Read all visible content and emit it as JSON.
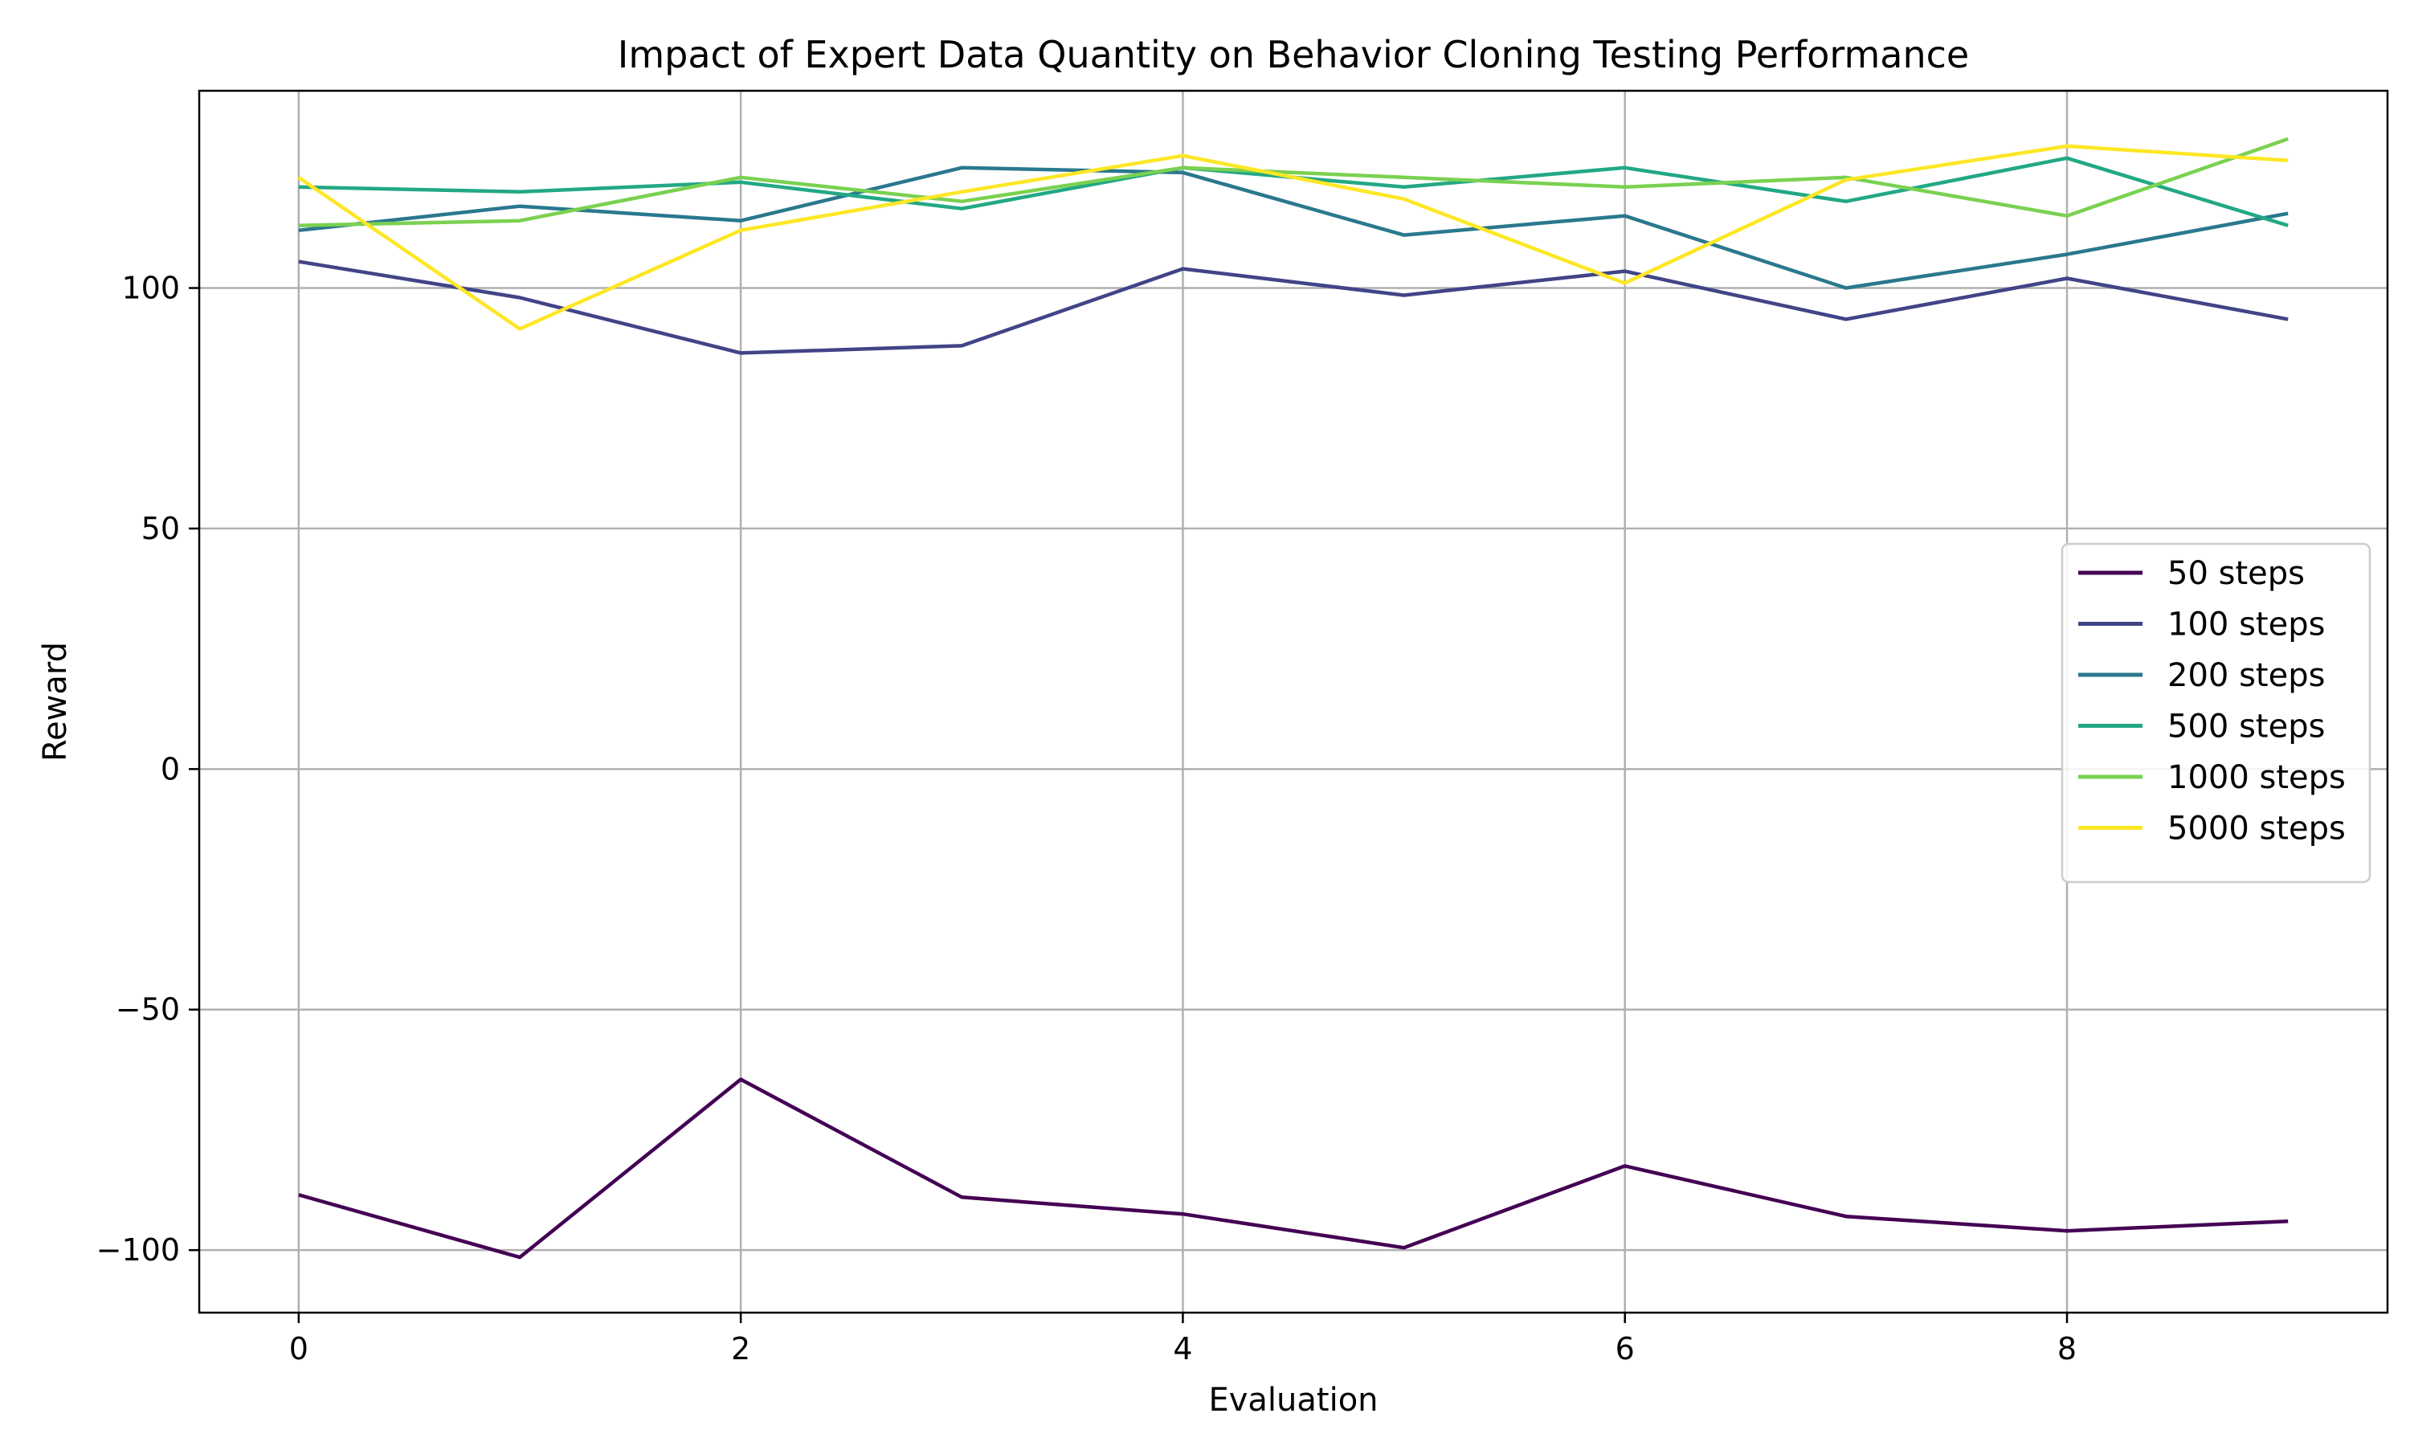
{
  "chart_data": {
    "type": "line",
    "title": "Impact of Expert Data Quantity on Behavior Cloning Testing Performance",
    "xlabel": "Evaluation",
    "ylabel": "Reward",
    "x": [
      0,
      1,
      2,
      3,
      4,
      5,
      6,
      7,
      8,
      9
    ],
    "xlim": [
      -0.45,
      9.45
    ],
    "ylim": [
      -113,
      141
    ],
    "xticks": [
      0,
      2,
      4,
      6,
      8
    ],
    "xtick_labels": [
      "0",
      "2",
      "4",
      "6",
      "8"
    ],
    "yticks": [
      -100,
      -50,
      0,
      50,
      100
    ],
    "ytick_labels": [
      "−100",
      "−50",
      "0",
      "50",
      "100"
    ],
    "grid": true,
    "legend_position": "center-right",
    "series": [
      {
        "name": "50 steps",
        "color": "#440154",
        "values": [
          -88.5,
          -101.5,
          -64.5,
          -89,
          -92.5,
          -99.5,
          -82.5,
          -93,
          -96,
          -94
        ]
      },
      {
        "name": "100 steps",
        "color": "#414487",
        "values": [
          105.5,
          98,
          86.5,
          88,
          104,
          98.5,
          103.5,
          93.5,
          102,
          93.5
        ]
      },
      {
        "name": "200 steps",
        "color": "#2a788e",
        "values": [
          112,
          117,
          114,
          125,
          124,
          111,
          115,
          100,
          107,
          115.5
        ]
      },
      {
        "name": "500 steps",
        "color": "#22a884",
        "values": [
          121,
          120,
          122,
          116.5,
          125,
          121,
          125,
          118,
          127,
          113
        ]
      },
      {
        "name": "1000 steps",
        "color": "#7ad151",
        "values": [
          113,
          114,
          123,
          118,
          125,
          123,
          121,
          123,
          115,
          131
        ]
      },
      {
        "name": "5000 steps",
        "color": "#fde725",
        "values": [
          123,
          91.5,
          112,
          120,
          127.5,
          118.5,
          101,
          122.5,
          129.5,
          126.5
        ]
      }
    ]
  }
}
